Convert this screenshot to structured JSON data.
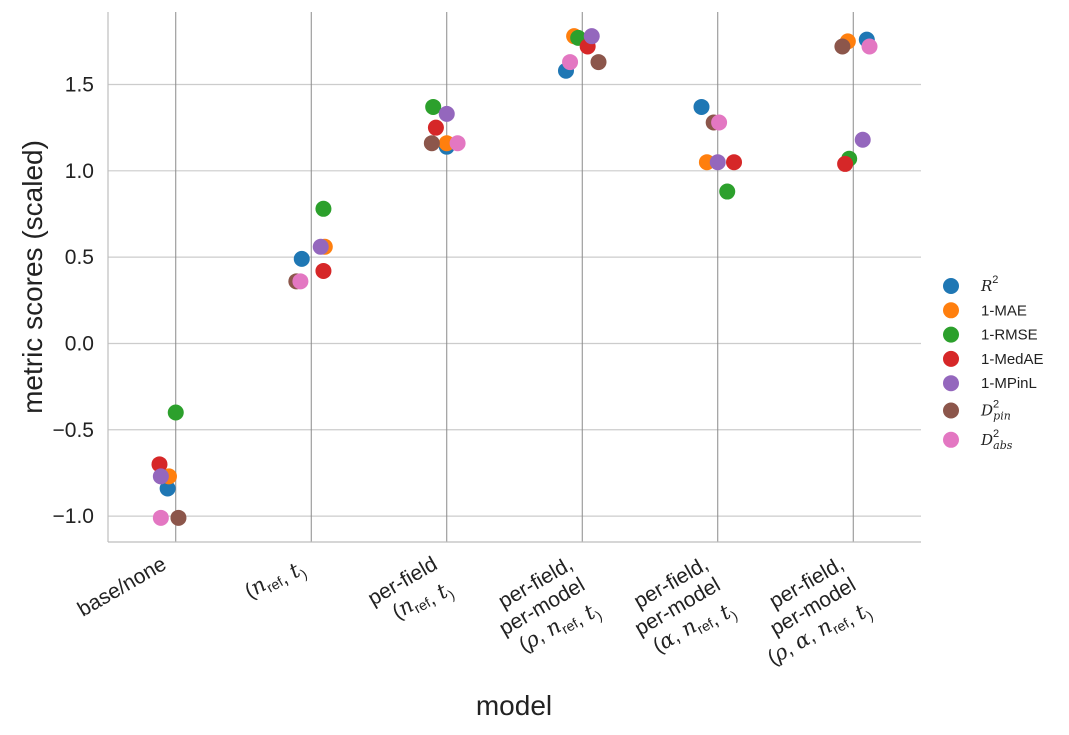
{
  "chart_data": {
    "type": "scatter",
    "title": "",
    "xlabel": "model",
    "ylabel": "metric scores (scaled)",
    "ylim": [
      -1.15,
      1.92
    ],
    "grid": true,
    "legend_position": "right",
    "yticks": [
      -1.0,
      -0.5,
      0.0,
      0.5,
      1.0,
      1.5
    ],
    "ytick_labels": [
      "−1.0",
      "−0.5",
      "0.0",
      "0.5",
      "1.0",
      "1.5"
    ],
    "categories": [
      {
        "lines": [
          [
            "base/none"
          ]
        ]
      },
      {
        "lines": [
          [
            "(",
            "n",
            "ref",
            ", ",
            "t",
            ")"
          ]
        ]
      },
      {
        "lines": [
          [
            "per-field"
          ],
          [
            "(",
            "n",
            "ref",
            ", ",
            "t",
            ")"
          ]
        ]
      },
      {
        "lines": [
          [
            "per-field,"
          ],
          [
            "per-model"
          ],
          [
            "(",
            "ρ",
            "",
            ", ",
            "n",
            "ref",
            ", ",
            "t",
            ")"
          ]
        ]
      },
      {
        "lines": [
          [
            "per-field,"
          ],
          [
            "per-model"
          ],
          [
            "(",
            "α",
            "",
            ", ",
            "n",
            "ref",
            ", ",
            "t",
            ")"
          ]
        ]
      },
      {
        "lines": [
          [
            "per-field,"
          ],
          [
            "per-model"
          ],
          [
            "(",
            "ρ",
            "",
            ", ",
            "α",
            "",
            ", ",
            "n",
            "ref",
            ", ",
            "t",
            ")"
          ]
        ]
      }
    ],
    "series": [
      {
        "name": "R2",
        "label_main": "R",
        "label_sup": "2",
        "label_sub": "",
        "color": "#1f77b4",
        "values": [
          -0.84,
          0.49,
          1.14,
          1.58,
          1.37,
          1.76
        ]
      },
      {
        "name": "1-MAE",
        "label_main": "1-MAE",
        "label_sup": "",
        "label_sub": "",
        "color": "#ff7f0e",
        "values": [
          -0.77,
          0.56,
          1.16,
          1.78,
          1.05,
          1.75
        ]
      },
      {
        "name": "1-RMSE",
        "label_main": "1-RMSE",
        "label_sup": "",
        "label_sub": "",
        "color": "#2ca02c",
        "values": [
          -0.4,
          0.78,
          1.37,
          1.77,
          0.88,
          1.07
        ]
      },
      {
        "name": "1-MedAE",
        "label_main": "1-MedAE",
        "label_sup": "",
        "label_sub": "",
        "color": "#d62728",
        "values": [
          -0.7,
          0.42,
          1.25,
          1.72,
          1.05,
          1.04
        ]
      },
      {
        "name": "1-MPinL",
        "label_main": "1-MPinL",
        "label_sup": "",
        "label_sub": "",
        "color": "#9467bd",
        "values": [
          -0.77,
          0.56,
          1.33,
          1.78,
          1.05,
          1.18
        ]
      },
      {
        "name": "D2_pin",
        "label_main": "D",
        "label_sup": "2",
        "label_sub": "pin",
        "color": "#8c564b",
        "values": [
          -1.01,
          0.36,
          1.16,
          1.63,
          1.28,
          1.72
        ]
      },
      {
        "name": "D2_abs",
        "label_main": "D",
        "label_sup": "2",
        "label_sub": "abs",
        "color": "#e377c2",
        "values": [
          -1.01,
          0.36,
          1.16,
          1.63,
          1.28,
          1.72
        ]
      }
    ],
    "jitter": [
      [
        -0.06,
        -0.07,
        0.0,
        -0.12,
        -0.12,
        0.1
      ],
      [
        -0.05,
        0.1,
        0.0,
        -0.06,
        -0.08,
        -0.04
      ],
      [
        0.0,
        0.09,
        -0.1,
        -0.03,
        0.07,
        -0.03
      ],
      [
        -0.12,
        0.09,
        -0.08,
        0.04,
        0.12,
        -0.06
      ],
      [
        -0.11,
        0.07,
        0.0,
        0.07,
        0.0,
        0.07
      ],
      [
        0.02,
        -0.11,
        -0.11,
        0.12,
        -0.03,
        -0.08
      ],
      [
        -0.11,
        -0.08,
        0.08,
        -0.09,
        0.01,
        0.12
      ]
    ]
  }
}
